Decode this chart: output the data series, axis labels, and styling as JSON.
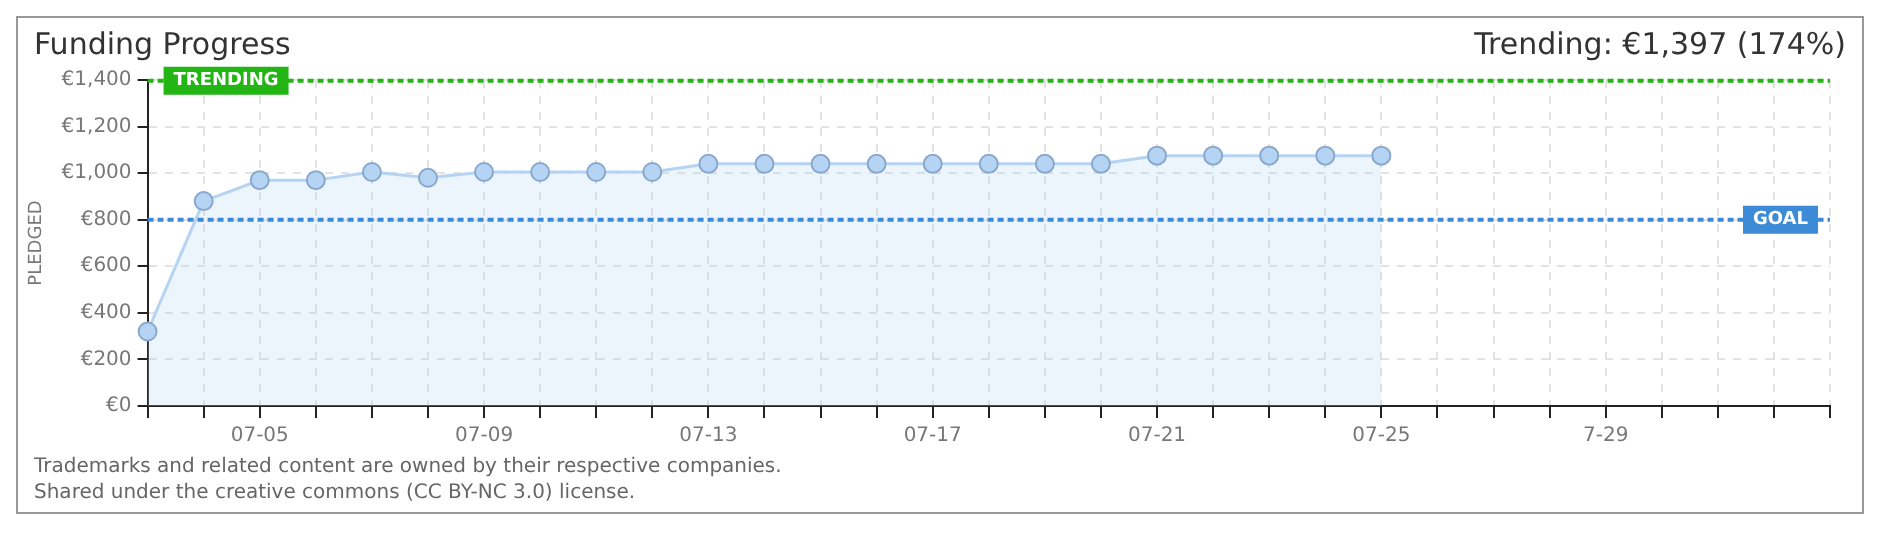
{
  "chart_data": {
    "type": "area",
    "title": "Funding Progress",
    "subtitle": "Trending: €1,397 (174%)",
    "ylabel": "PLEDGED",
    "categories": [
      null,
      null,
      "07-05",
      null,
      null,
      null,
      "07-09",
      null,
      null,
      null,
      "07-13",
      null,
      null,
      null,
      "07-17",
      null,
      null,
      null,
      "07-21",
      null,
      null,
      null,
      "07-25",
      null,
      null,
      null,
      "7-29",
      null,
      null,
      null,
      null
    ],
    "series": [
      {
        "color": "#b5d3f3",
        "values": [
          320,
          880,
          970,
          970,
          1005,
          980,
          1005,
          1005,
          1005,
          1005,
          1040,
          1040,
          1040,
          1040,
          1040,
          1040,
          1040,
          1040,
          1075,
          1075,
          1075,
          1075,
          1075,
          null,
          null,
          null,
          null,
          null,
          null,
          null,
          null
        ]
      }
    ],
    "ylim": [
      0,
      1400
    ],
    "yticks": [
      {
        "value": 0,
        "label": "€0"
      },
      {
        "value": 200,
        "label": "€200"
      },
      {
        "value": 400,
        "label": "€400"
      },
      {
        "value": 600,
        "label": "€600"
      },
      {
        "value": 800,
        "label": "€800"
      },
      {
        "value": 1000,
        "label": "€1,000"
      },
      {
        "value": 1200,
        "label": "€1,200"
      },
      {
        "value": 1400,
        "label": "€1,400"
      }
    ],
    "ref_lines": [
      {
        "axis": "y",
        "value": 1397,
        "label": "TRENDING",
        "color": "#22b514",
        "line_style": "dotted"
      },
      {
        "axis": "y",
        "value": 800,
        "label": "GOAL",
        "color": "#3d8bd6",
        "line_style": "dotted"
      }
    ],
    "annotations": [
      "Trademarks and related content are owned by their respective companies.",
      "Shared under the creative commons (CC BY-NC 3.0) license."
    ],
    "grid": true,
    "marker": "circle",
    "legend": false
  }
}
